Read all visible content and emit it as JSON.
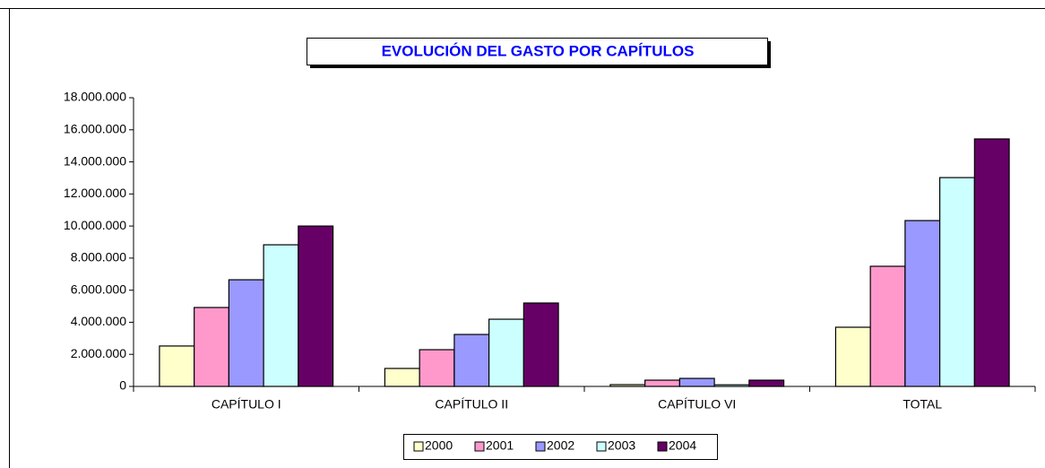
{
  "chart_data": {
    "type": "bar",
    "title": "EVOLUCIÓN DEL GASTO POR CAPÍTULOS",
    "categories": [
      "CAPÍTULO I",
      "CAPÍTULO II",
      "CAPÍTULO VI",
      "TOTAL"
    ],
    "series": [
      {
        "name": "2000",
        "color": "#ffffcc",
        "values": [
          2520000,
          1120000,
          110000,
          3690000
        ]
      },
      {
        "name": "2001",
        "color": "#ff99cc",
        "values": [
          4920000,
          2290000,
          390000,
          7490000
        ]
      },
      {
        "name": "2002",
        "color": "#9999ff",
        "values": [
          6650000,
          3240000,
          500000,
          10340000
        ]
      },
      {
        "name": "2003",
        "color": "#ccffff",
        "values": [
          8830000,
          4190000,
          100000,
          13020000
        ]
      },
      {
        "name": "2004",
        "color": "#660066",
        "values": [
          10000000,
          5200000,
          390000,
          15430000
        ]
      }
    ],
    "ylim": [
      0,
      18000000
    ],
    "yticks": [
      0,
      {
        "value": 2000000,
        "label": "2.000.000"
      },
      {
        "value": 4000000,
        "label": "4.000.000"
      },
      {
        "value": 6000000,
        "label": "6.000.000"
      },
      {
        "value": 8000000,
        "label": "8.000.000"
      },
      {
        "value": 10000000,
        "label": "10.000.000"
      },
      {
        "value": 12000000,
        "label": "12.000.000"
      },
      {
        "value": 14000000,
        "label": "14.000.000"
      },
      {
        "value": 16000000,
        "label": "16.000.000"
      },
      {
        "value": 18000000,
        "label": "18.000.000"
      }
    ],
    "legend": "bottom"
  }
}
